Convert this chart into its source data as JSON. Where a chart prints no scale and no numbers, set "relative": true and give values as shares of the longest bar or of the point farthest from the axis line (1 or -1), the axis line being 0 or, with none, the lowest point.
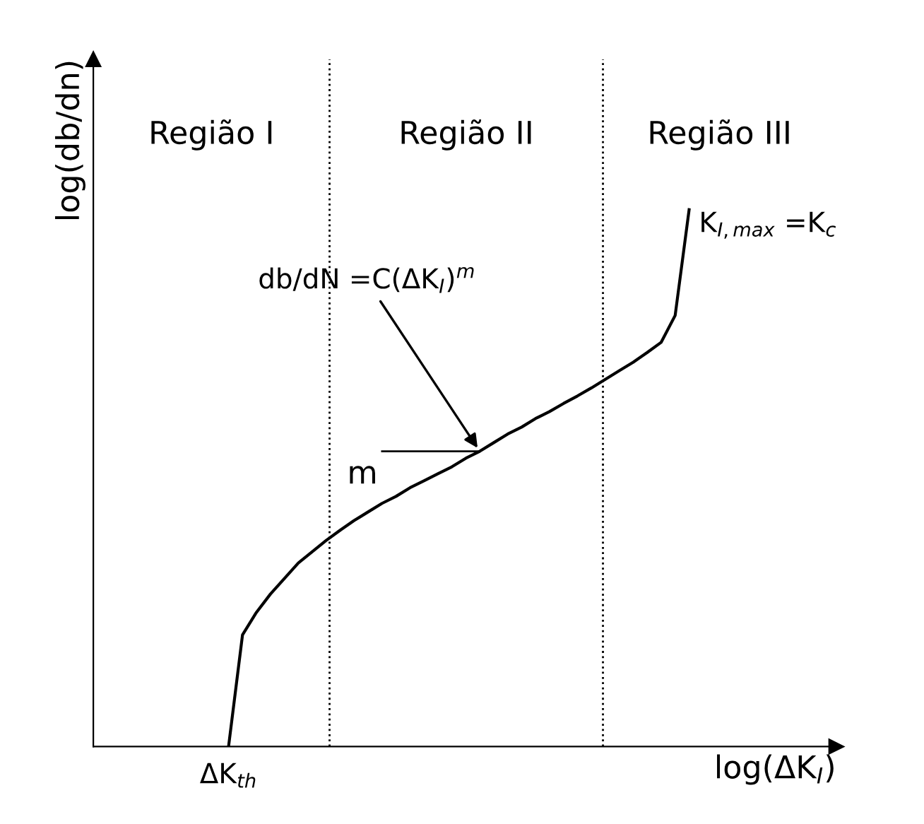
{
  "chart_data": {
    "type": "line",
    "relative": true,
    "xlabel": "log(ΔK$_{I}$)",
    "ylabel": "log(db/dn)",
    "categories": [
      null,
      null,
      null,
      null,
      null,
      null,
      null,
      null,
      null,
      null,
      null,
      null,
      null,
      null,
      null,
      null,
      null,
      null,
      null,
      null,
      null,
      null,
      null,
      null,
      null,
      null,
      null,
      null,
      null,
      null,
      null,
      null,
      null,
      null
    ],
    "series": [
      {
        "color": "#000000",
        "values": [
          0,
          0.208,
          0.25,
          0.284,
          0.313,
          0.342,
          0.363,
          0.384,
          0.403,
          0.421,
          0.437,
          0.453,
          0.466,
          0.482,
          0.495,
          0.508,
          0.521,
          0.537,
          0.55,
          0.566,
          0.582,
          0.595,
          0.611,
          0.624,
          0.639,
          0.653,
          0.668,
          0.684,
          0.7,
          0.716,
          0.734,
          0.753,
          0.803,
          1.0
        ]
      }
    ],
    "annotations": [
      "Região I",
      "Região II",
      "Região III",
      "ΔK$_{th}$",
      "K$_{I,max}$ =K$_{c}$",
      "db/dN =C(ΔK$_{I}$)$^{m}$",
      "m"
    ],
    "legend": false,
    "marker": "none",
    "line_style": "solid"
  }
}
